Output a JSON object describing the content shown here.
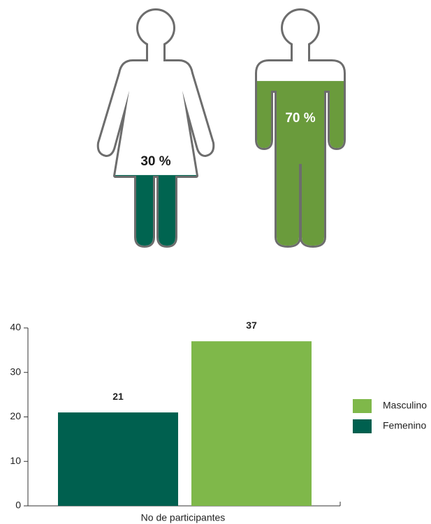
{
  "chart_data": [
    {
      "type": "pictograph",
      "values": [
        30,
        70
      ],
      "value_labels": [
        "30 %",
        "70 %"
      ],
      "colors": [
        "#006450",
        "#6a9b3c"
      ]
    },
    {
      "type": "bar",
      "xlabel": "No de participantes",
      "series": [
        {
          "name": "Femenino",
          "color": "#00604f",
          "values": [
            21
          ]
        },
        {
          "name": "Masculino",
          "color": "#7fb84a",
          "values": [
            37
          ]
        }
      ],
      "ylim": [
        0,
        40
      ],
      "yticks": [
        0,
        10,
        20,
        30,
        40
      ],
      "value_labels_shown": true
    }
  ]
}
